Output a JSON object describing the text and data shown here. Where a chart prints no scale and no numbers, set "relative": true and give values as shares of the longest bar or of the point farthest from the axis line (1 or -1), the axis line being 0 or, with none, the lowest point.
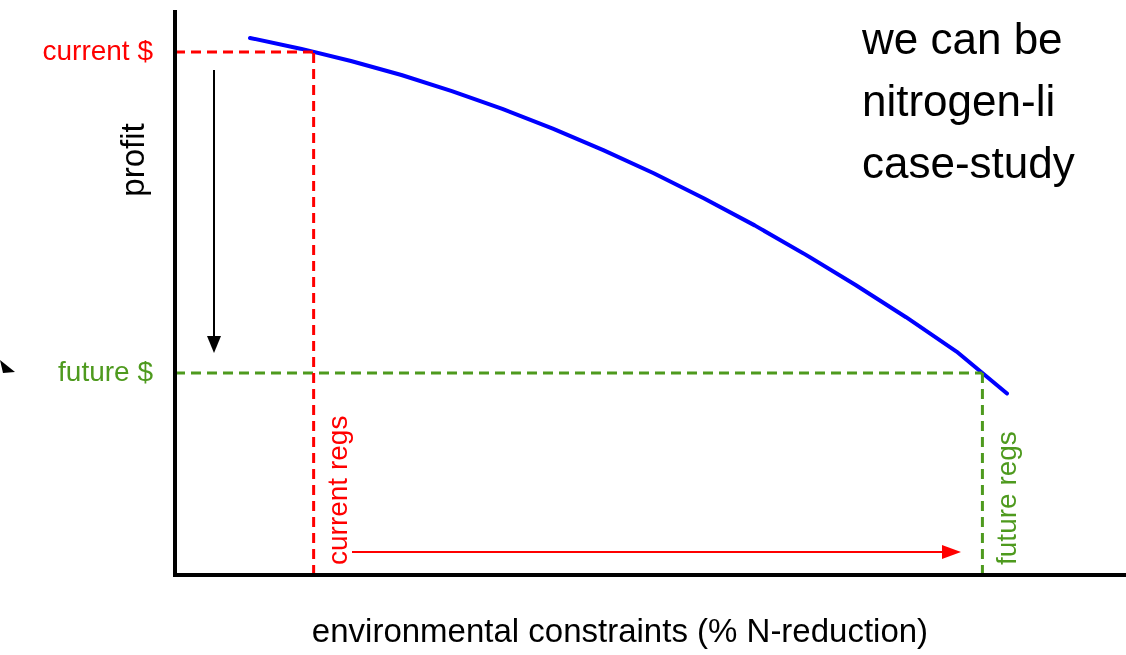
{
  "chart_data": {
    "type": "line",
    "relative": true,
    "xlabel": "environmental constraints (% N-reduction)",
    "ylabel": "profit",
    "categories": [
      null,
      null,
      null,
      null,
      null,
      null,
      null,
      null,
      null,
      null,
      null,
      null,
      null,
      null,
      null,
      null
    ],
    "legend": false,
    "marker": "none",
    "line_style": "solid",
    "series": [
      {
        "color": "#0000ff",
        "values": [
          1,
          0.98,
          0.957,
          0.931,
          0.901,
          0.868,
          0.831,
          0.791,
          0.748,
          0.701,
          0.651,
          0.597,
          0.54,
          0.48,
          0.416,
          0.338
        ]
      }
    ],
    "ref_lines": [
      {
        "axis": "y",
        "value": 0.974,
        "label": "current $",
        "color": "#ff0000",
        "line_style": "dashed"
      },
      {
        "axis": "y",
        "value": 0.376,
        "label": "future $",
        "color": "#4e9a1e",
        "line_style": "dashed"
      },
      {
        "axis": "x",
        "label": "current regs",
        "color": "#ff0000",
        "line_style": "dashed"
      },
      {
        "axis": "x",
        "label": "future regs",
        "color": "#4e9a1e",
        "line_style": "dashed"
      }
    ],
    "annotations": [
      "we can be",
      "nitrogen-li",
      "case-study"
    ]
  }
}
